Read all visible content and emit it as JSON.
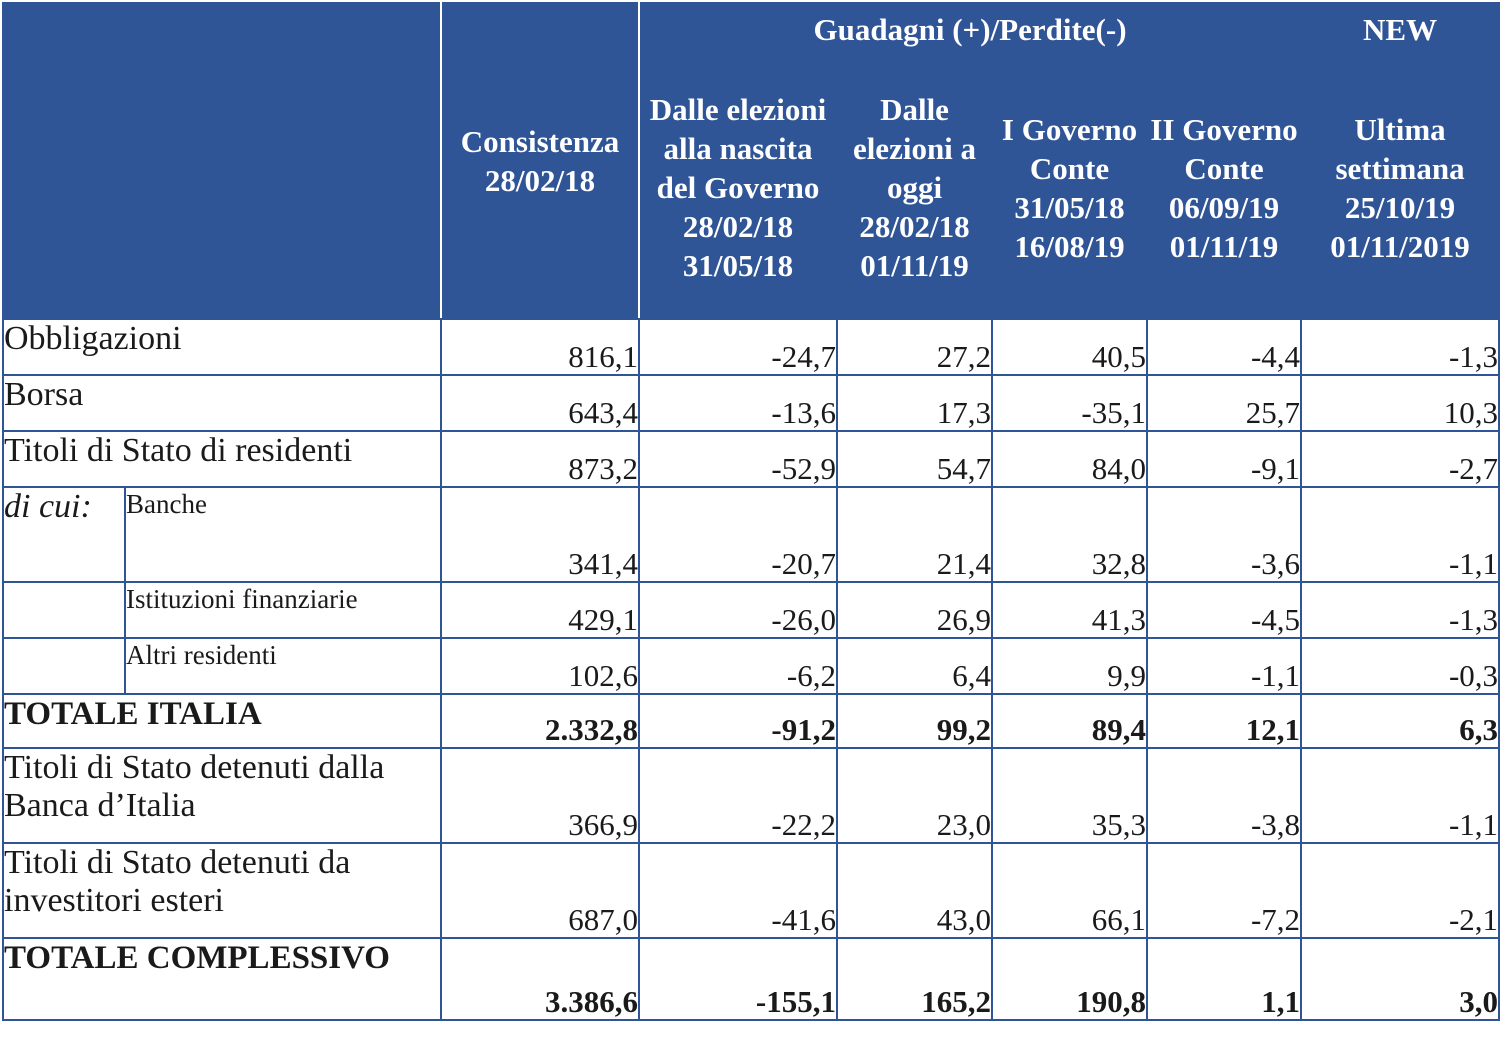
{
  "header": {
    "group_label": "Guadagni (+)/Perdite(-)",
    "new_label": "NEW",
    "columns": [
      "Consistenza 28/02/18",
      "Dalle elezioni alla nascita del Governo 28/02/18 31/05/18",
      "Dalle elezioni a oggi 28/02/18 01/11/19",
      "I Governo Conte 31/05/18 16/08/19",
      "II Governo Conte 06/09/19 01/11/19",
      "Ultima settimana 25/10/19 01/11/2019"
    ]
  },
  "dicui_label": "di cui:",
  "rows": [
    {
      "label": "Obbligazioni",
      "values": [
        "816,1",
        "-24,7",
        "27,2",
        "40,5",
        "-4,4",
        "-1,3"
      ]
    },
    {
      "label": "Borsa",
      "values": [
        "643,4",
        "-13,6",
        "17,3",
        "-35,1",
        "25,7",
        "10,3"
      ]
    },
    {
      "label": "Titoli di Stato di residenti",
      "values": [
        "873,2",
        "-52,9",
        "54,7",
        "84,0",
        "-9,1",
        "-2,7"
      ]
    },
    {
      "label": "Banche",
      "values": [
        "341,4",
        "-20,7",
        "21,4",
        "32,8",
        "-3,6",
        "-1,1"
      ]
    },
    {
      "label": "Istituzioni finanziarie",
      "values": [
        "429,1",
        "-26,0",
        "26,9",
        "41,3",
        "-4,5",
        "-1,3"
      ]
    },
    {
      "label": "Altri residenti",
      "values": [
        "102,6",
        "-6,2",
        "6,4",
        "9,9",
        "-1,1",
        "-0,3"
      ]
    },
    {
      "label": "TOTALE ITALIA",
      "values": [
        "2.332,8",
        "-91,2",
        "99,2",
        "89,4",
        "12,1",
        "6,3"
      ]
    },
    {
      "label": "Titoli di Stato detenuti dalla Banca d’Italia",
      "values": [
        "366,9",
        "-22,2",
        "23,0",
        "35,3",
        "-3,8",
        "-1,1"
      ]
    },
    {
      "label": "Titoli di Stato detenuti da investitori esteri",
      "values": [
        "687,0",
        "-41,6",
        "43,0",
        "66,1",
        "-7,2",
        "-2,1"
      ]
    },
    {
      "label": "TOTALE COMPLESSIVO",
      "values": [
        "3.386,6",
        "-155,1",
        "165,2",
        "190,8",
        "1,1",
        "3,0"
      ]
    }
  ]
}
